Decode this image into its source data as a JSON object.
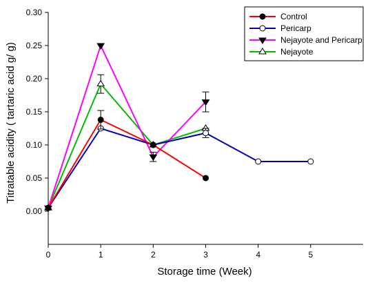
{
  "chart_data": {
    "type": "line",
    "title": "",
    "xlabel": "Storage time (Week)",
    "ylabel": "Titratable acidity ( tartaric acid g/ g)",
    "xlim": [
      0,
      6
    ],
    "ylim": [
      -0.05,
      0.3
    ],
    "x_ticks": [
      "0",
      "1",
      "2",
      "3",
      "4",
      "5"
    ],
    "y_ticks": [
      "0.00",
      "0.05",
      "0.10",
      "0.15",
      "0.20",
      "0.25",
      "0.30"
    ],
    "grid": false,
    "legend_position": "top-right",
    "series": [
      {
        "name": "Control",
        "color": "#ff0000",
        "marker": "filled-circle",
        "points": [
          {
            "x": 0,
            "y": 0.005
          },
          {
            "x": 1,
            "y": 0.138,
            "err": 0.014
          },
          {
            "x": 2,
            "y": 0.1
          },
          {
            "x": 3,
            "y": 0.05
          }
        ]
      },
      {
        "name": "Pericarp",
        "color": "#0000bb",
        "marker": "open-circle",
        "points": [
          {
            "x": 0,
            "y": 0.005
          },
          {
            "x": 1,
            "y": 0.125
          },
          {
            "x": 2,
            "y": 0.1
          },
          {
            "x": 3,
            "y": 0.118,
            "err": 0.007
          },
          {
            "x": 4,
            "y": 0.075
          },
          {
            "x": 5,
            "y": 0.075
          }
        ]
      },
      {
        "name": "Nejayote and Pericarp",
        "color": "#ff00ff",
        "marker": "filled-triangle-down",
        "points": [
          {
            "x": 0,
            "y": 0.005
          },
          {
            "x": 1,
            "y": 0.25
          },
          {
            "x": 2,
            "y": 0.082,
            "err": 0.007
          },
          {
            "x": 3,
            "y": 0.165,
            "err": 0.015
          }
        ]
      },
      {
        "name": "Nejayote",
        "color": "#00bb00",
        "marker": "open-triangle-up",
        "points": [
          {
            "x": 0,
            "y": 0.005
          },
          {
            "x": 1,
            "y": 0.192,
            "err": 0.014
          },
          {
            "x": 2,
            "y": 0.1
          },
          {
            "x": 3,
            "y": 0.125
          }
        ]
      }
    ]
  }
}
